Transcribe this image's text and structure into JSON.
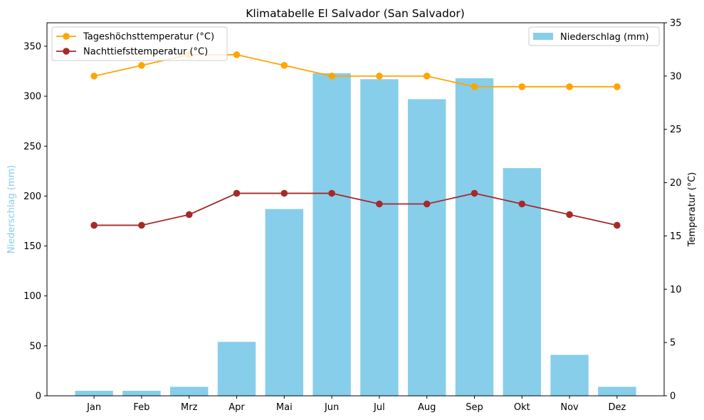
{
  "chart_data": {
    "type": "bar",
    "title": "Klimatabelle El Salvador (San Salvador)",
    "categories": [
      "Jan",
      "Feb",
      "Mrz",
      "Apr",
      "Mai",
      "Jun",
      "Jul",
      "Aug",
      "Sep",
      "Okt",
      "Nov",
      "Dez"
    ],
    "ylabel_left": "Niederschlag (mm)",
    "ylabel_right": "Temperatur (°C)",
    "ylim_left": [
      0,
      373.5
    ],
    "ylim_right": [
      0,
      35
    ],
    "yticks_left": [
      0,
      50,
      100,
      150,
      200,
      250,
      300,
      350
    ],
    "yticks_right": [
      0,
      5,
      10,
      15,
      20,
      25,
      30,
      35
    ],
    "grid": false,
    "series": [
      {
        "name": "Niederschlag (mm)",
        "type": "bar",
        "axis": "left",
        "color": "#87ceeb",
        "values": [
          5,
          5,
          9,
          54,
          187,
          323,
          317,
          297,
          318,
          228,
          41,
          9
        ]
      },
      {
        "name": "Tageshöchsttemperatur (°C)",
        "type": "line",
        "axis": "right",
        "color": "#ffa500",
        "values": [
          30,
          31,
          32,
          32,
          31,
          30,
          30,
          30,
          29,
          29,
          29,
          29
        ]
      },
      {
        "name": "Nachttiefsttemperatur (°C)",
        "type": "line",
        "axis": "right",
        "color": "#a52a2a",
        "values": [
          16,
          16,
          17,
          19,
          19,
          19,
          18,
          18,
          19,
          18,
          17,
          16
        ]
      }
    ],
    "legends": [
      {
        "placement": "upper-left",
        "entries": [
          "Tageshöchsttemperatur (°C)",
          "Nachttiefsttemperatur (°C)"
        ]
      },
      {
        "placement": "upper-right",
        "entries": [
          "Niederschlag (mm)"
        ]
      }
    ]
  }
}
